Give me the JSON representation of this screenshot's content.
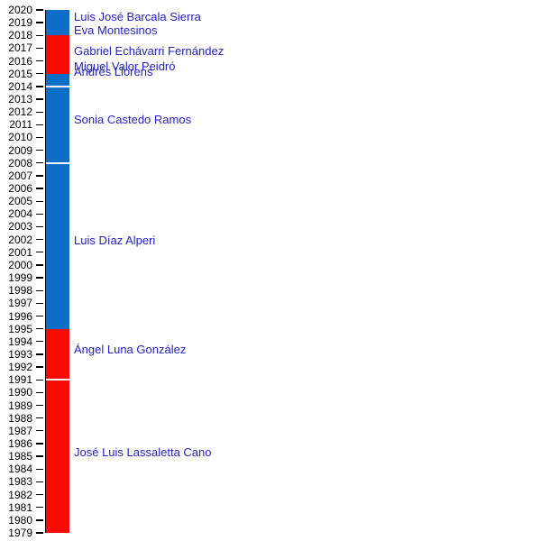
{
  "chart_data": {
    "type": "bar",
    "subtype": "vertical-timeline-of-officeholders",
    "title": "",
    "axis": {
      "unit": "year",
      "min": 1979,
      "max": 2020,
      "step": 1,
      "tick_labels_side": "left"
    },
    "colors": {
      "blue": "#0d6dc7",
      "red": "#fb0800",
      "label_text": "#2222cc",
      "axis_text": "#000000",
      "divider": "#eef6ff"
    },
    "segments": [
      {
        "from": 2018,
        "to": 2020,
        "party_color": "blue",
        "mayor": "Luis José Barcala Sierra"
      },
      {
        "from": 2015,
        "to": 2018,
        "party_color": "red",
        "mayor": "Gabriel Echávarri Fernández"
      },
      {
        "from": 2014,
        "to": 2015,
        "party_color": "blue",
        "mayor": "Andrés Llorens"
      },
      {
        "from": 2008,
        "to": 2014,
        "party_color": "blue",
        "mayor": "Sonia Castedo Ramos"
      },
      {
        "from": 1995,
        "to": 2008,
        "party_color": "blue",
        "mayor": "Luis Díaz Alperi"
      },
      {
        "from": 1991,
        "to": 1995,
        "party_color": "red",
        "mayor": "Ángel Luna González"
      },
      {
        "from": 1979,
        "to": 1991,
        "party_color": "red",
        "mayor": "José Luis Lassaletta Cano"
      }
    ],
    "labels": [
      {
        "text": "Luis José Barcala Sierra",
        "year": 2019.45
      },
      {
        "text": "Eva Montesinos",
        "year": 2018.4
      },
      {
        "text": "Gabriel Echávarri Fernández",
        "year": 2016.8
      },
      {
        "text": "Miguel Valor Peidró",
        "year": 2015.55
      },
      {
        "text": "Andrés Llorens",
        "year": 2015.15
      },
      {
        "text": "Sonia Castedo Ramos",
        "year": 2011.4
      },
      {
        "text": "Luis Díaz Alperi",
        "year": 2001.95
      },
      {
        "text": "Ángel Luna González",
        "year": 1993.4
      },
      {
        "text": "José Luis Lassaletta Cano",
        "year": 1985.35
      }
    ]
  }
}
